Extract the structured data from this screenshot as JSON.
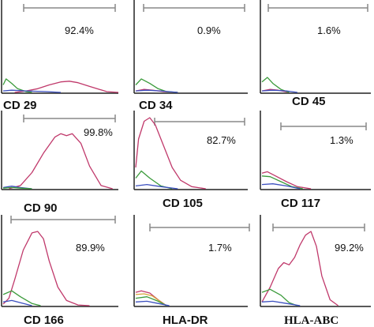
{
  "chart_data": [
    {
      "type": "line",
      "title": "CD 29",
      "percent_label": "92.4%",
      "xscale": "log",
      "series": [
        {
          "color": "#c0396b",
          "x": [
            0.4,
            0.8,
            1.2,
            1.6,
            2.0,
            2.3,
            2.6,
            3.0,
            3.6,
            4.0
          ],
          "y": [
            0.0,
            0.02,
            0.05,
            0.1,
            0.14,
            0.15,
            0.13,
            0.08,
            0.01,
            0.0
          ]
        },
        {
          "color": "#3a9a3a",
          "x": [
            0.0,
            0.1,
            0.3,
            0.5,
            0.8,
            1.0
          ],
          "y": [
            0.1,
            0.18,
            0.12,
            0.05,
            0.01,
            0.0
          ]
        },
        {
          "color": "#3b4fbf",
          "x": [
            0.0,
            0.3,
            0.8,
            1.5,
            2.0
          ],
          "y": [
            0.02,
            0.03,
            0.02,
            0.01,
            0.0
          ]
        }
      ]
    },
    {
      "type": "line",
      "title": "CD 34",
      "percent_label": "0.9%",
      "xscale": "log",
      "series": [
        {
          "color": "#c0396b",
          "x": [
            0.0,
            0.3,
            0.6,
            1.0,
            1.5
          ],
          "y": [
            0.02,
            0.04,
            0.03,
            0.01,
            0.0
          ]
        },
        {
          "color": "#3a9a3a",
          "x": [
            0.0,
            0.2,
            0.5,
            0.8,
            1.1,
            1.5
          ],
          "y": [
            0.1,
            0.18,
            0.12,
            0.05,
            0.01,
            0.0
          ]
        },
        {
          "color": "#3b4fbf",
          "x": [
            0.0,
            0.4,
            0.9,
            1.5
          ],
          "y": [
            0.02,
            0.03,
            0.02,
            0.0
          ]
        }
      ]
    },
    {
      "type": "line",
      "title": "CD 45",
      "percent_label": "1.6%",
      "xscale": "log",
      "series": [
        {
          "color": "#c0396b",
          "x": [
            0.0,
            0.3,
            0.6,
            1.0
          ],
          "y": [
            0.02,
            0.04,
            0.03,
            0.0
          ]
        },
        {
          "color": "#3a9a3a",
          "x": [
            0.0,
            0.2,
            0.4,
            0.7,
            1.0
          ],
          "y": [
            0.14,
            0.2,
            0.12,
            0.04,
            0.0
          ]
        },
        {
          "color": "#3b4fbf",
          "x": [
            0.0,
            0.4,
            0.9,
            1.3
          ],
          "y": [
            0.02,
            0.03,
            0.02,
            0.0
          ]
        }
      ]
    },
    {
      "type": "line",
      "title": "CD 90",
      "percent_label": "99.8%",
      "xscale": "log",
      "series": [
        {
          "color": "#c0396b",
          "x": [
            0.2,
            0.6,
            1.0,
            1.4,
            1.8,
            2.0,
            2.2,
            2.4,
            2.7,
            3.0,
            3.4,
            3.8
          ],
          "y": [
            0.0,
            0.05,
            0.25,
            0.55,
            0.8,
            0.85,
            0.82,
            0.85,
            0.7,
            0.35,
            0.05,
            0.0
          ]
        },
        {
          "color": "#3b4fbf",
          "x": [
            0.0,
            0.3,
            0.6,
            1.0
          ],
          "y": [
            0.02,
            0.04,
            0.02,
            0.0
          ]
        },
        {
          "color": "#3a9a3a",
          "x": [
            0.0,
            0.3,
            0.6,
            1.0
          ],
          "y": [
            0.01,
            0.02,
            0.01,
            0.0
          ]
        }
      ]
    },
    {
      "type": "line",
      "title": "CD 105",
      "percent_label": "82.7%",
      "xscale": "log",
      "series": [
        {
          "color": "#c0396b",
          "x": [
            0.0,
            0.1,
            0.3,
            0.5,
            0.7,
            1.0,
            1.3,
            1.6,
            2.0,
            2.5
          ],
          "y": [
            0.3,
            0.7,
            0.95,
            1.0,
            0.9,
            0.6,
            0.3,
            0.12,
            0.03,
            0.0
          ]
        },
        {
          "color": "#3a9a3a",
          "x": [
            0.0,
            0.2,
            0.5,
            0.9,
            1.3
          ],
          "y": [
            0.15,
            0.25,
            0.15,
            0.04,
            0.0
          ]
        },
        {
          "color": "#3b4fbf",
          "x": [
            0.0,
            0.4,
            0.9,
            1.5
          ],
          "y": [
            0.04,
            0.06,
            0.03,
            0.0
          ]
        }
      ]
    },
    {
      "type": "line",
      "title": "CD 117",
      "percent_label": "1.3%",
      "xscale": "log",
      "series": [
        {
          "color": "#c0396b",
          "x": [
            0.0,
            0.2,
            0.5,
            0.9,
            1.3,
            1.8
          ],
          "y": [
            0.22,
            0.24,
            0.18,
            0.1,
            0.03,
            0.0
          ]
        },
        {
          "color": "#3a9a3a",
          "x": [
            0.0,
            0.3,
            0.7,
            1.1,
            1.5
          ],
          "y": [
            0.18,
            0.17,
            0.1,
            0.03,
            0.0
          ]
        },
        {
          "color": "#3b4fbf",
          "x": [
            0.0,
            0.4,
            0.9,
            1.4
          ],
          "y": [
            0.06,
            0.07,
            0.04,
            0.0
          ]
        }
      ]
    },
    {
      "type": "line",
      "title": "CD 166",
      "percent_label": "89.9%",
      "xscale": "log",
      "series": [
        {
          "color": "#c0396b",
          "x": [
            0.0,
            0.2,
            0.4,
            0.7,
            1.0,
            1.2,
            1.4,
            1.6,
            1.9,
            2.2,
            2.6,
            3.0
          ],
          "y": [
            0.02,
            0.1,
            0.35,
            0.75,
            0.98,
            1.0,
            0.9,
            0.6,
            0.25,
            0.07,
            0.01,
            0.0
          ]
        },
        {
          "color": "#3a9a3a",
          "x": [
            0.0,
            0.3,
            0.6,
            1.0,
            1.3
          ],
          "y": [
            0.15,
            0.2,
            0.12,
            0.03,
            0.0
          ]
        },
        {
          "color": "#3b4fbf",
          "x": [
            0.0,
            0.3,
            0.6,
            1.0
          ],
          "y": [
            0.05,
            0.07,
            0.04,
            0.0
          ]
        }
      ]
    },
    {
      "type": "line",
      "title": "HLA-DR",
      "percent_label": "1.7%",
      "xscale": "log",
      "series": [
        {
          "color": "#c0396b",
          "x": [
            0.0,
            0.2,
            0.5,
            0.8,
            1.1
          ],
          "y": [
            0.18,
            0.2,
            0.17,
            0.08,
            0.0
          ]
        },
        {
          "color": "#d9a43a",
          "x": [
            0.0,
            0.3,
            0.6,
            0.9,
            1.1
          ],
          "y": [
            0.15,
            0.16,
            0.13,
            0.05,
            0.0
          ]
        },
        {
          "color": "#3a9a3a",
          "x": [
            0.0,
            0.4,
            0.8,
            1.1
          ],
          "y": [
            0.1,
            0.12,
            0.06,
            0.0
          ]
        },
        {
          "color": "#3b4fbf",
          "x": [
            0.0,
            0.4,
            0.8,
            1.2
          ],
          "y": [
            0.05,
            0.06,
            0.03,
            0.0
          ]
        }
      ]
    },
    {
      "type": "line",
      "title": "HLA-ABC",
      "percent_label": "99.2%",
      "xscale": "log",
      "series": [
        {
          "color": "#c0396b",
          "x": [
            0.0,
            0.3,
            0.6,
            0.8,
            1.0,
            1.2,
            1.4,
            1.6,
            1.8,
            2.0,
            2.2,
            2.5,
            2.8
          ],
          "y": [
            0.05,
            0.25,
            0.5,
            0.58,
            0.55,
            0.65,
            0.82,
            0.95,
            1.0,
            0.8,
            0.4,
            0.08,
            0.0
          ]
        },
        {
          "color": "#3a9a3a",
          "x": [
            0.0,
            0.3,
            0.7,
            1.0,
            1.3
          ],
          "y": [
            0.18,
            0.22,
            0.14,
            0.04,
            0.0
          ]
        },
        {
          "color": "#3b4fbf",
          "x": [
            0.0,
            0.4,
            0.9,
            1.4
          ],
          "y": [
            0.05,
            0.06,
            0.03,
            0.0
          ]
        }
      ]
    }
  ]
}
